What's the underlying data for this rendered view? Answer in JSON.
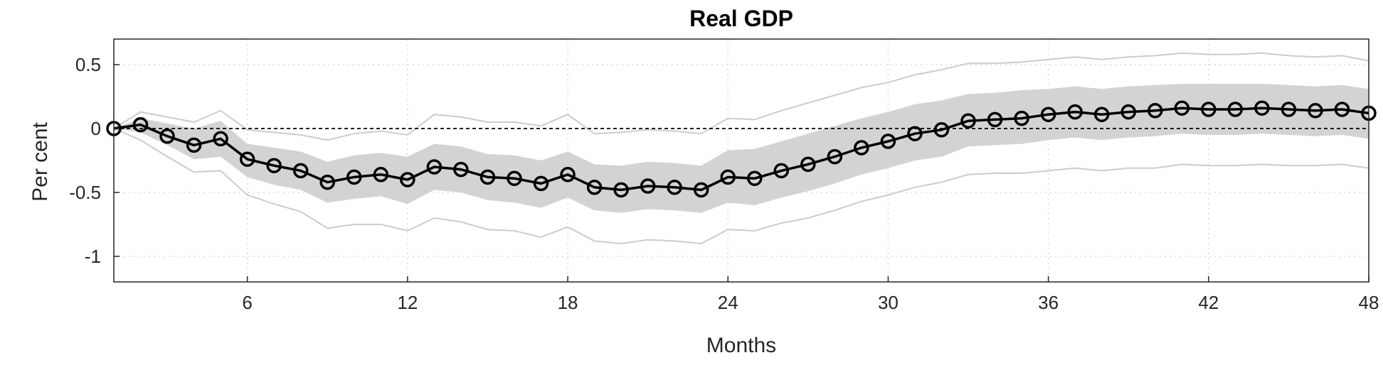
{
  "chart_data": {
    "type": "line",
    "title": "Real GDP",
    "xlabel": "Months",
    "ylabel": "Per cent",
    "xlim": [
      1,
      48
    ],
    "ylim": [
      -1.2,
      0.7
    ],
    "x_ticks": [
      6,
      12,
      18,
      24,
      30,
      36,
      42,
      48
    ],
    "y_ticks": [
      0.5,
      0,
      -0.5,
      -1
    ],
    "y_tick_labels": [
      "0.5",
      "0",
      "-0.5",
      "-1"
    ],
    "grid": true,
    "zero_line": true,
    "x": [
      1,
      2,
      3,
      4,
      5,
      6,
      7,
      8,
      9,
      10,
      11,
      12,
      13,
      14,
      15,
      16,
      17,
      18,
      19,
      20,
      21,
      22,
      23,
      24,
      25,
      26,
      27,
      28,
      29,
      30,
      31,
      32,
      33,
      34,
      35,
      36,
      37,
      38,
      39,
      40,
      41,
      42,
      43,
      44,
      45,
      46,
      47,
      48
    ],
    "series": [
      {
        "role": "median",
        "values": [
          0.0,
          0.03,
          -0.06,
          -0.13,
          -0.08,
          -0.24,
          -0.29,
          -0.33,
          -0.42,
          -0.38,
          -0.36,
          -0.4,
          -0.3,
          -0.32,
          -0.38,
          -0.39,
          -0.43,
          -0.36,
          -0.46,
          -0.48,
          -0.45,
          -0.46,
          -0.48,
          -0.38,
          -0.39,
          -0.33,
          -0.28,
          -0.22,
          -0.15,
          -0.1,
          -0.04,
          -0.01,
          0.06,
          0.07,
          0.08,
          0.11,
          0.13,
          0.11,
          0.13,
          0.14,
          0.16,
          0.15,
          0.15,
          0.16,
          0.15,
          0.14,
          0.15,
          0.12
        ]
      },
      {
        "role": "inner_band_upper",
        "values": [
          0.0,
          0.08,
          0.04,
          0.0,
          0.06,
          -0.12,
          -0.15,
          -0.18,
          -0.26,
          -0.21,
          -0.19,
          -0.22,
          -0.12,
          -0.14,
          -0.2,
          -0.21,
          -0.25,
          -0.18,
          -0.28,
          -0.29,
          -0.26,
          -0.27,
          -0.29,
          -0.17,
          -0.16,
          -0.1,
          -0.04,
          0.02,
          0.08,
          0.13,
          0.19,
          0.22,
          0.27,
          0.28,
          0.3,
          0.31,
          0.33,
          0.31,
          0.33,
          0.34,
          0.35,
          0.35,
          0.35,
          0.35,
          0.34,
          0.33,
          0.34,
          0.31
        ]
      },
      {
        "role": "inner_band_lower",
        "values": [
          0.0,
          -0.03,
          -0.13,
          -0.24,
          -0.22,
          -0.38,
          -0.44,
          -0.48,
          -0.58,
          -0.55,
          -0.53,
          -0.59,
          -0.48,
          -0.5,
          -0.56,
          -0.58,
          -0.62,
          -0.54,
          -0.64,
          -0.66,
          -0.63,
          -0.64,
          -0.66,
          -0.58,
          -0.6,
          -0.54,
          -0.49,
          -0.43,
          -0.36,
          -0.31,
          -0.25,
          -0.22,
          -0.14,
          -0.13,
          -0.12,
          -0.09,
          -0.07,
          -0.09,
          -0.07,
          -0.06,
          -0.04,
          -0.05,
          -0.05,
          -0.04,
          -0.05,
          -0.06,
          -0.05,
          -0.08
        ]
      },
      {
        "role": "outer_band_upper",
        "values": [
          0.0,
          0.13,
          0.09,
          0.05,
          0.14,
          -0.01,
          -0.03,
          -0.05,
          -0.09,
          -0.04,
          -0.02,
          -0.05,
          0.11,
          0.09,
          0.05,
          0.05,
          0.02,
          0.11,
          -0.04,
          -0.03,
          -0.01,
          -0.02,
          -0.04,
          0.08,
          0.07,
          0.14,
          0.2,
          0.26,
          0.32,
          0.36,
          0.42,
          0.46,
          0.51,
          0.51,
          0.52,
          0.54,
          0.56,
          0.54,
          0.56,
          0.57,
          0.59,
          0.58,
          0.58,
          0.59,
          0.57,
          0.56,
          0.57,
          0.53
        ]
      },
      {
        "role": "outer_band_lower",
        "values": [
          0.0,
          -0.09,
          -0.22,
          -0.34,
          -0.33,
          -0.52,
          -0.59,
          -0.65,
          -0.78,
          -0.75,
          -0.75,
          -0.8,
          -0.7,
          -0.73,
          -0.79,
          -0.8,
          -0.85,
          -0.77,
          -0.88,
          -0.9,
          -0.87,
          -0.88,
          -0.9,
          -0.79,
          -0.8,
          -0.74,
          -0.7,
          -0.64,
          -0.57,
          -0.52,
          -0.46,
          -0.42,
          -0.36,
          -0.35,
          -0.35,
          -0.33,
          -0.31,
          -0.33,
          -0.31,
          -0.31,
          -0.28,
          -0.29,
          -0.29,
          -0.28,
          -0.29,
          -0.29,
          -0.28,
          -0.31
        ]
      }
    ],
    "colors": {
      "median": "#000000",
      "inner_band": "#d3d3d3",
      "outer_band_line": "#cccccc",
      "grid": "#d9d9d9",
      "zero_line": "#000000"
    }
  }
}
